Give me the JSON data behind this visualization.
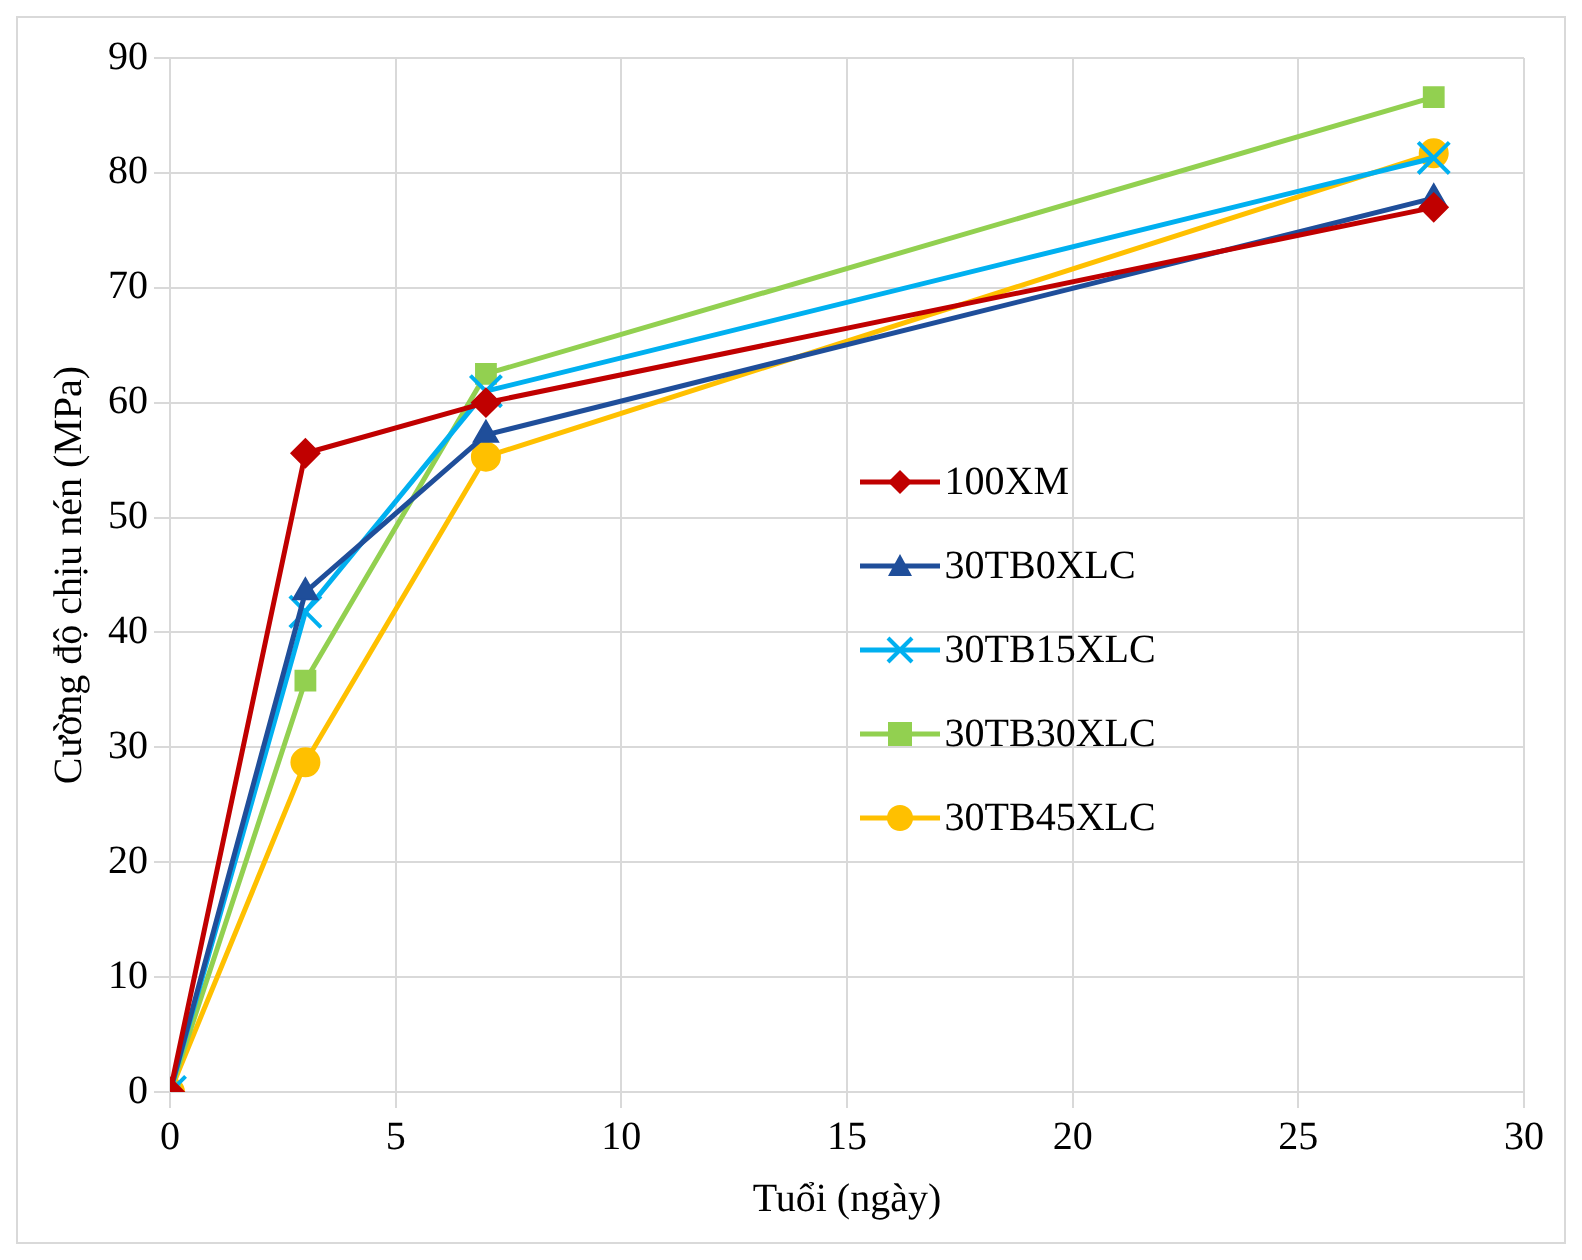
{
  "chart_data": {
    "type": "line",
    "xlabel": "Tuổi (ngày)",
    "ylabel": "Cường độ chịu nén (MPa)",
    "x": [
      0,
      3,
      7,
      28
    ],
    "xlim": [
      0,
      30
    ],
    "xticks": [
      0,
      5,
      10,
      15,
      20,
      25,
      30
    ],
    "ylim": [
      0,
      90
    ],
    "yticks": [
      0,
      10,
      20,
      30,
      40,
      50,
      60,
      70,
      80,
      90
    ],
    "grid": true,
    "legend": "right",
    "line_style": "solid",
    "series": [
      {
        "name": "100XM",
        "color": "#c00000",
        "marker": "diamond",
        "values": [
          0,
          55.6,
          60,
          77
        ]
      },
      {
        "name": "30TB0XLC",
        "color": "#1f4e9a",
        "marker": "triangle",
        "values": [
          0,
          43.5,
          57.2,
          77.8
        ]
      },
      {
        "name": "30TB15XLC",
        "color": "#00b0f0",
        "marker": "cross",
        "values": [
          0,
          41.8,
          61,
          81.3
        ]
      },
      {
        "name": "30TB30XLC",
        "color": "#92d050",
        "marker": "square",
        "values": [
          0,
          35.8,
          62.5,
          86.6
        ]
      },
      {
        "name": "30TB45XLC",
        "color": "#ffc000",
        "marker": "circle",
        "values": [
          0,
          28.7,
          55.3,
          81.7
        ]
      }
    ]
  }
}
